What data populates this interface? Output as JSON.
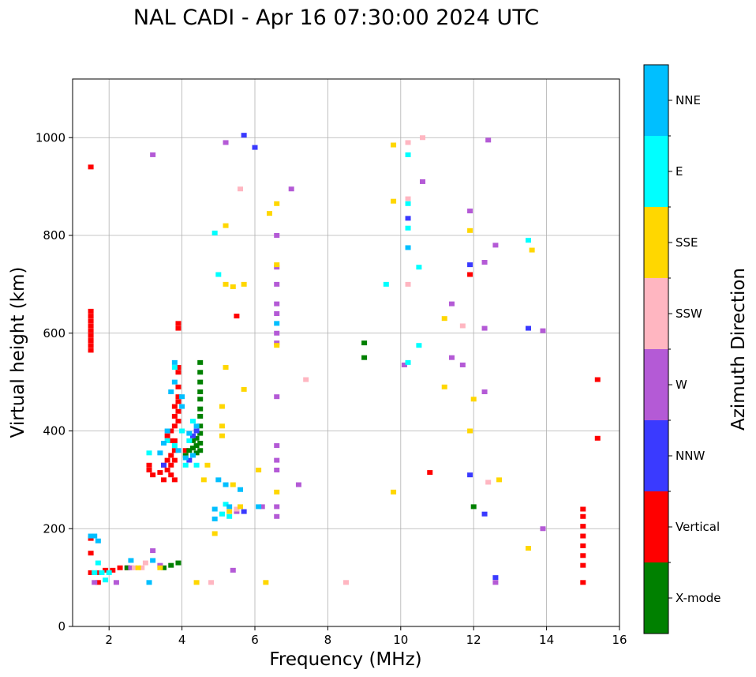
{
  "chart_data": {
    "type": "scatter",
    "title": "NAL CADI - Apr 16 07:30:00 2024 UTC",
    "xlabel": "Frequency (MHz)",
    "ylabel": "Virtual height (km)",
    "xlim": [
      1,
      16
    ],
    "ylim": [
      0,
      1120
    ],
    "xticks": [
      2,
      4,
      6,
      8,
      10,
      12,
      14,
      16
    ],
    "yticks": [
      0,
      200,
      400,
      600,
      800,
      1000
    ],
    "grid": true,
    "colorbar": {
      "label": "Azimuth Direction",
      "categories": [
        {
          "name": "X-mode",
          "color": "#008000"
        },
        {
          "name": "Vertical",
          "color": "#ff0000"
        },
        {
          "name": "NNW",
          "color": "#3a3aff"
        },
        {
          "name": "W",
          "color": "#b45ad6"
        },
        {
          "name": "SSW",
          "color": "#ffb6c1"
        },
        {
          "name": "SSE",
          "color": "#ffd700"
        },
        {
          "name": "E",
          "color": "#00ffff"
        },
        {
          "name": "NNE",
          "color": "#00bfff"
        }
      ]
    },
    "series": [
      {
        "name": "Vertical",
        "points": [
          [
            1.5,
            110
          ],
          [
            1.5,
            150
          ],
          [
            1.5,
            180
          ],
          [
            1.5,
            565
          ],
          [
            1.5,
            575
          ],
          [
            1.5,
            585
          ],
          [
            1.5,
            595
          ],
          [
            1.5,
            605
          ],
          [
            1.5,
            615
          ],
          [
            1.5,
            625
          ],
          [
            1.5,
            635
          ],
          [
            1.5,
            645
          ],
          [
            1.5,
            940
          ],
          [
            1.7,
            90
          ],
          [
            1.7,
            110
          ],
          [
            1.9,
            115
          ],
          [
            2.1,
            115
          ],
          [
            2.3,
            120
          ],
          [
            2.5,
            120
          ],
          [
            3.1,
            320
          ],
          [
            3.1,
            330
          ],
          [
            3.2,
            310
          ],
          [
            3.4,
            315
          ],
          [
            3.5,
            300
          ],
          [
            3.5,
            330
          ],
          [
            3.6,
            320
          ],
          [
            3.6,
            340
          ],
          [
            3.7,
            310
          ],
          [
            3.7,
            330
          ],
          [
            3.7,
            350
          ],
          [
            3.8,
            300
          ],
          [
            3.8,
            340
          ],
          [
            3.8,
            360
          ],
          [
            3.6,
            390
          ],
          [
            3.7,
            380
          ],
          [
            3.7,
            400
          ],
          [
            3.8,
            380
          ],
          [
            3.8,
            410
          ],
          [
            3.8,
            430
          ],
          [
            3.8,
            450
          ],
          [
            3.9,
            420
          ],
          [
            3.9,
            440
          ],
          [
            3.9,
            460
          ],
          [
            3.9,
            470
          ],
          [
            3.9,
            490
          ],
          [
            3.9,
            520
          ],
          [
            3.9,
            530
          ],
          [
            3.9,
            610
          ],
          [
            3.9,
            620
          ],
          [
            4.1,
            360
          ],
          [
            5.5,
            635
          ],
          [
            10.8,
            315
          ],
          [
            11.9,
            720
          ],
          [
            15.0,
            90
          ],
          [
            15.0,
            125
          ],
          [
            15.0,
            145
          ],
          [
            15.0,
            165
          ],
          [
            15.0,
            185
          ],
          [
            15.0,
            205
          ],
          [
            15.0,
            225
          ],
          [
            15.0,
            240
          ],
          [
            15.4,
            385
          ],
          [
            15.4,
            505
          ]
        ]
      },
      {
        "name": "X-mode",
        "points": [
          [
            2.5,
            120
          ],
          [
            3.5,
            120
          ],
          [
            3.7,
            125
          ],
          [
            3.9,
            130
          ],
          [
            4.1,
            350
          ],
          [
            4.2,
            360
          ],
          [
            4.3,
            365
          ],
          [
            4.3,
            380
          ],
          [
            4.4,
            355
          ],
          [
            4.4,
            370
          ],
          [
            4.4,
            385
          ],
          [
            4.5,
            360
          ],
          [
            4.5,
            375
          ],
          [
            4.5,
            395
          ],
          [
            4.5,
            410
          ],
          [
            4.5,
            430
          ],
          [
            4.5,
            445
          ],
          [
            4.5,
            465
          ],
          [
            4.5,
            480
          ],
          [
            4.5,
            500
          ],
          [
            4.5,
            520
          ],
          [
            4.5,
            540
          ],
          [
            9.0,
            550
          ],
          [
            9.0,
            580
          ],
          [
            12.0,
            245
          ]
        ]
      },
      {
        "name": "NNW",
        "points": [
          [
            3.5,
            330
          ],
          [
            4.2,
            340
          ],
          [
            4.3,
            390
          ],
          [
            4.4,
            400
          ],
          [
            5.7,
            235
          ],
          [
            5.7,
            1005
          ],
          [
            6.0,
            980
          ],
          [
            10.2,
            835
          ],
          [
            11.9,
            310
          ],
          [
            11.9,
            740
          ],
          [
            12.3,
            230
          ],
          [
            12.6,
            100
          ],
          [
            13.5,
            610
          ]
        ]
      },
      {
        "name": "W",
        "points": [
          [
            1.6,
            90
          ],
          [
            2.2,
            90
          ],
          [
            2.6,
            120
          ],
          [
            3.2,
            155
          ],
          [
            3.2,
            965
          ],
          [
            3.4,
            125
          ],
          [
            5.4,
            115
          ],
          [
            5.5,
            235
          ],
          [
            6.2,
            245
          ],
          [
            6.6,
            225
          ],
          [
            6.6,
            245
          ],
          [
            6.6,
            320
          ],
          [
            6.6,
            340
          ],
          [
            6.6,
            370
          ],
          [
            6.6,
            470
          ],
          [
            6.6,
            580
          ],
          [
            6.6,
            600
          ],
          [
            6.6,
            640
          ],
          [
            6.6,
            660
          ],
          [
            6.6,
            700
          ],
          [
            6.6,
            735
          ],
          [
            6.6,
            800
          ],
          [
            7.0,
            895
          ],
          [
            7.2,
            290
          ],
          [
            10.1,
            535
          ],
          [
            10.6,
            910
          ],
          [
            11.4,
            550
          ],
          [
            11.4,
            660
          ],
          [
            11.7,
            535
          ],
          [
            11.9,
            850
          ],
          [
            12.3,
            480
          ],
          [
            12.3,
            610
          ],
          [
            12.3,
            745
          ],
          [
            12.4,
            995
          ],
          [
            12.6,
            90
          ],
          [
            12.6,
            780
          ],
          [
            13.9,
            200
          ],
          [
            13.9,
            605
          ],
          [
            5.2,
            990
          ]
        ]
      },
      {
        "name": "SSW",
        "points": [
          [
            2.7,
            120
          ],
          [
            2.9,
            120
          ],
          [
            3.0,
            130
          ],
          [
            4.8,
            90
          ],
          [
            5.5,
            240
          ],
          [
            5.6,
            895
          ],
          [
            7.4,
            505
          ],
          [
            8.5,
            90
          ],
          [
            10.2,
            700
          ],
          [
            10.2,
            875
          ],
          [
            10.2,
            990
          ],
          [
            10.6,
            1000
          ],
          [
            11.7,
            615
          ],
          [
            12.4,
            295
          ],
          [
            5.1,
            230
          ]
        ]
      },
      {
        "name": "SSE",
        "points": [
          [
            2.8,
            120
          ],
          [
            3.4,
            120
          ],
          [
            4.4,
            90
          ],
          [
            4.6,
            300
          ],
          [
            4.7,
            330
          ],
          [
            4.9,
            190
          ],
          [
            5.1,
            390
          ],
          [
            5.1,
            410
          ],
          [
            5.1,
            450
          ],
          [
            5.2,
            530
          ],
          [
            5.2,
            820
          ],
          [
            5.2,
            700
          ],
          [
            5.3,
            235
          ],
          [
            5.4,
            290
          ],
          [
            5.4,
            695
          ],
          [
            5.6,
            245
          ],
          [
            5.7,
            485
          ],
          [
            5.7,
            700
          ],
          [
            6.1,
            320
          ],
          [
            6.3,
            90
          ],
          [
            6.4,
            845
          ],
          [
            6.6,
            275
          ],
          [
            6.6,
            575
          ],
          [
            6.6,
            740
          ],
          [
            6.6,
            865
          ],
          [
            9.8,
            275
          ],
          [
            9.8,
            870
          ],
          [
            9.8,
            985
          ],
          [
            11.2,
            490
          ],
          [
            11.2,
            630
          ],
          [
            11.9,
            400
          ],
          [
            11.9,
            810
          ],
          [
            12.0,
            465
          ],
          [
            12.7,
            300
          ],
          [
            13.5,
            160
          ],
          [
            13.6,
            770
          ]
        ]
      },
      {
        "name": "E",
        "points": [
          [
            1.6,
            110
          ],
          [
            1.7,
            130
          ],
          [
            1.8,
            110
          ],
          [
            1.9,
            95
          ],
          [
            2.0,
            110
          ],
          [
            3.1,
            355
          ],
          [
            3.6,
            380
          ],
          [
            3.8,
            370
          ],
          [
            3.8,
            530
          ],
          [
            4.0,
            400
          ],
          [
            4.1,
            330
          ],
          [
            4.2,
            380
          ],
          [
            4.3,
            420
          ],
          [
            4.4,
            330
          ],
          [
            4.9,
            805
          ],
          [
            5.0,
            720
          ],
          [
            5.1,
            230
          ],
          [
            5.2,
            250
          ],
          [
            5.3,
            225
          ],
          [
            9.6,
            700
          ],
          [
            10.2,
            540
          ],
          [
            10.2,
            815
          ],
          [
            10.2,
            865
          ],
          [
            10.2,
            965
          ],
          [
            10.5,
            575
          ],
          [
            10.5,
            735
          ],
          [
            13.5,
            790
          ]
        ]
      },
      {
        "name": "NNE",
        "points": [
          [
            1.5,
            185
          ],
          [
            1.6,
            185
          ],
          [
            1.7,
            175
          ],
          [
            2.6,
            135
          ],
          [
            3.1,
            90
          ],
          [
            3.2,
            135
          ],
          [
            3.4,
            355
          ],
          [
            3.5,
            375
          ],
          [
            3.6,
            400
          ],
          [
            3.7,
            480
          ],
          [
            3.8,
            500
          ],
          [
            3.8,
            540
          ],
          [
            3.9,
            360
          ],
          [
            4.0,
            450
          ],
          [
            4.0,
            470
          ],
          [
            4.1,
            345
          ],
          [
            4.2,
            395
          ],
          [
            4.3,
            350
          ],
          [
            4.4,
            410
          ],
          [
            4.9,
            220
          ],
          [
            4.9,
            240
          ],
          [
            5.0,
            300
          ],
          [
            5.2,
            290
          ],
          [
            5.3,
            245
          ],
          [
            5.6,
            280
          ],
          [
            6.1,
            245
          ],
          [
            6.6,
            620
          ],
          [
            10.2,
            775
          ]
        ]
      }
    ]
  }
}
